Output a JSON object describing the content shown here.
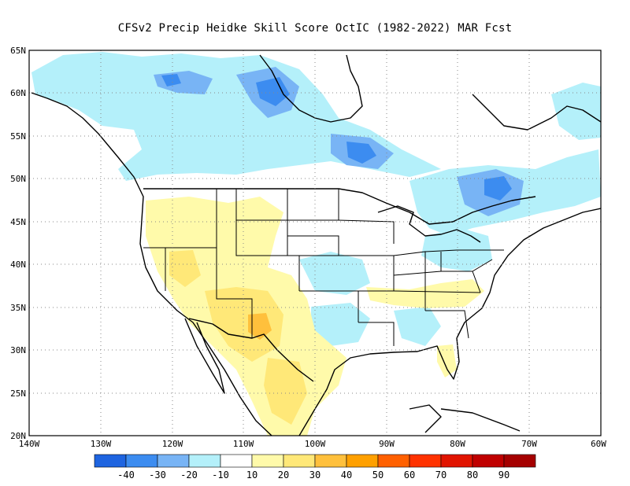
{
  "title": "CFSv2 Precip Heidke Skill Score OctIC (1982-2022) MAR Fcst",
  "map": {
    "lon_range": [
      -140,
      -60
    ],
    "lat_range": [
      20,
      65
    ],
    "grid": true,
    "lat_labels": [
      "65N",
      "60N",
      "55N",
      "50N",
      "45N",
      "40N",
      "35N",
      "30N",
      "25N",
      "20N"
    ],
    "lat_values": [
      65,
      60,
      55,
      50,
      45,
      40,
      35,
      30,
      25,
      20
    ],
    "lon_labels": [
      "140W",
      "130W",
      "120W",
      "110W",
      "100W",
      "90W",
      "80W",
      "70W",
      "60W"
    ],
    "lon_values": [
      -140,
      -130,
      -120,
      -110,
      -100,
      -90,
      -80,
      -70,
      -60
    ]
  },
  "colorbar": {
    "colors": [
      "#1e64e0",
      "#3c8cf0",
      "#78b4f5",
      "#b4f0fa",
      "#ffffff",
      "#fffaaa",
      "#ffe878",
      "#ffc03c",
      "#ffa000",
      "#ff6000",
      "#ff3200",
      "#e11400",
      "#c00000",
      "#a50000"
    ],
    "labels": [
      "-40",
      "-30",
      "-20",
      "-10",
      "10",
      "20",
      "30",
      "40",
      "50",
      "60",
      "70",
      "80",
      "90"
    ]
  },
  "shading_colors": {
    "light_blue": "#b4f0fa",
    "mid_blue": "#78b4f5",
    "blue": "#3c8cf0",
    "pale_yellow": "#fffaaa",
    "yellow": "#ffe878",
    "orange": "#ffc03c"
  }
}
